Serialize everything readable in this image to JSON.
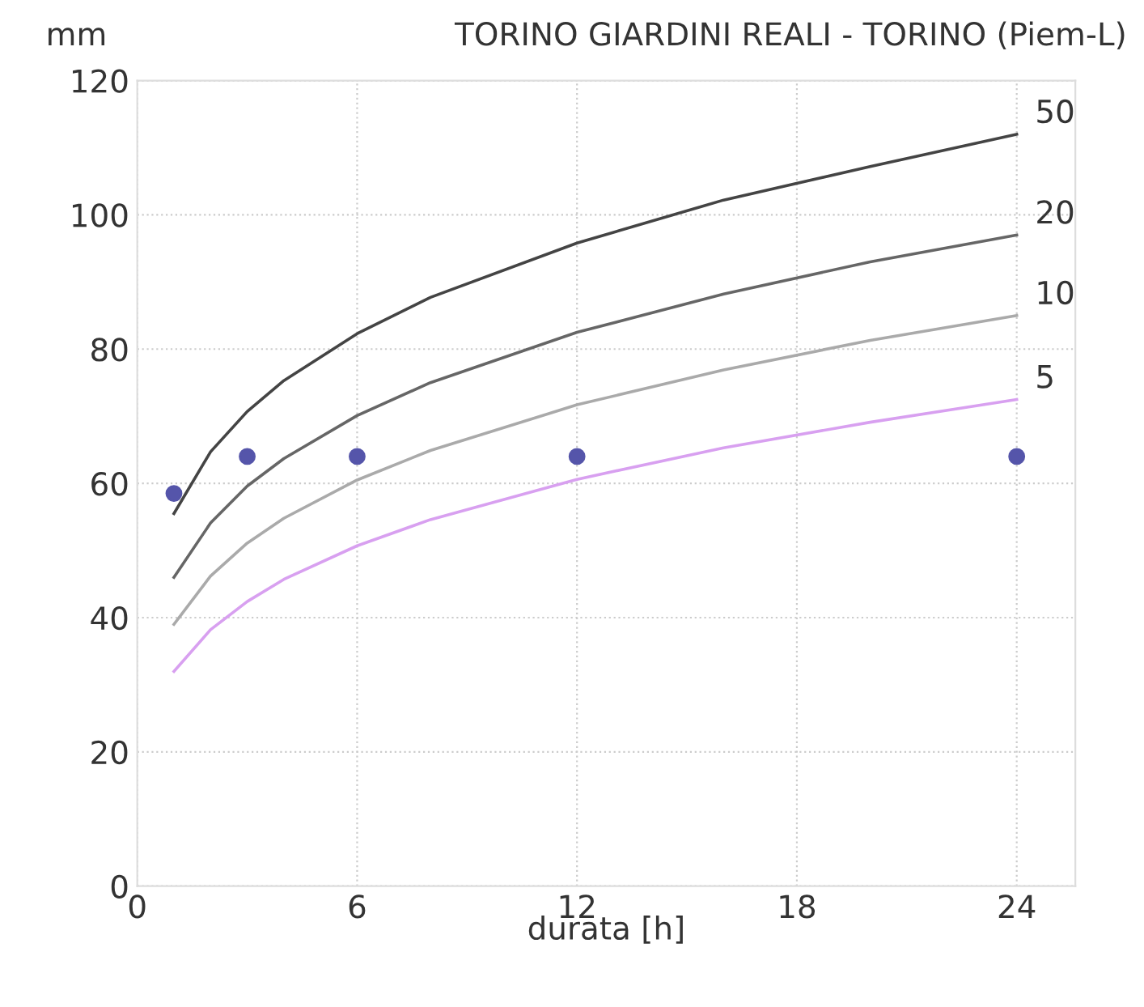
{
  "chart_data": {
    "type": "line",
    "title": "TORINO GIARDINI REALI - TORINO (Piem-L)",
    "xlabel": "durata [h]",
    "ylabel": "mm",
    "xlim": [
      0,
      25.6
    ],
    "ylim": [
      0,
      120
    ],
    "xticks": [
      0,
      6,
      12,
      18,
      24
    ],
    "yticks": [
      0,
      20,
      40,
      60,
      80,
      100,
      120
    ],
    "grid": true,
    "marker": "none",
    "line_style": "solid",
    "series": [
      {
        "name": "50",
        "color": "#444444",
        "x": [
          1,
          2,
          3,
          4,
          6,
          8,
          12,
          16,
          20,
          24
        ],
        "values": [
          55.5,
          64.7,
          70.7,
          75.3,
          82.3,
          87.7,
          95.8,
          102.2,
          107.2,
          112
        ]
      },
      {
        "name": "20",
        "color": "#666666",
        "x": [
          1,
          2,
          3,
          4,
          6,
          8,
          12,
          16,
          20,
          24
        ],
        "values": [
          46,
          54.1,
          59.6,
          63.7,
          70.1,
          75.0,
          82.5,
          88.2,
          93.0,
          97
        ]
      },
      {
        "name": "10",
        "color": "#aaaaaa",
        "x": [
          1,
          2,
          3,
          4,
          6,
          8,
          12,
          16,
          20,
          24
        ],
        "values": [
          39,
          46.2,
          51.1,
          54.8,
          60.5,
          64.9,
          71.7,
          76.9,
          81.3,
          85
        ]
      },
      {
        "name": "5",
        "color": "#d8a0f0",
        "x": [
          1,
          2,
          3,
          4,
          6,
          8,
          12,
          16,
          20,
          24
        ],
        "values": [
          32,
          38.2,
          42.4,
          45.7,
          50.7,
          54.6,
          60.6,
          65.3,
          69.1,
          72.5
        ]
      },
      {
        "type": "scatter",
        "color": "#5555aa",
        "marker": "circle",
        "x": [
          1,
          3,
          6,
          12,
          24
        ],
        "values": [
          58.5,
          64,
          64,
          64,
          64
        ]
      }
    ]
  }
}
